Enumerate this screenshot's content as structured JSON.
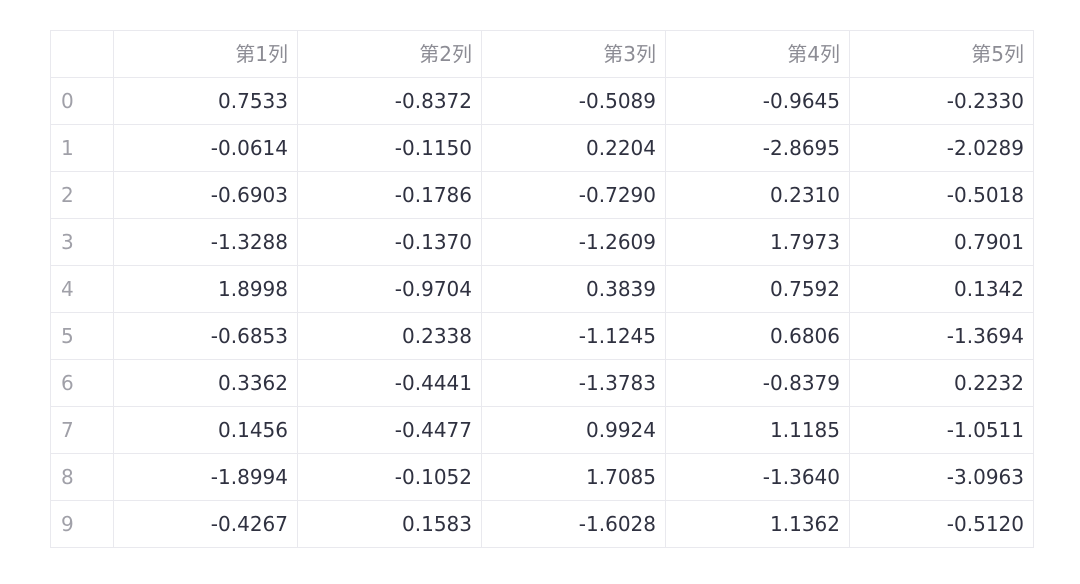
{
  "table": {
    "index_header": "",
    "columns": [
      "第1列",
      "第2列",
      "第3列",
      "第4列",
      "第5列"
    ],
    "rows": [
      {
        "index": "0",
        "cells": [
          "0.7533",
          "-0.8372",
          "-0.5089",
          "-0.9645",
          "-0.2330"
        ]
      },
      {
        "index": "1",
        "cells": [
          "-0.0614",
          "-0.1150",
          "0.2204",
          "-2.8695",
          "-2.0289"
        ]
      },
      {
        "index": "2",
        "cells": [
          "-0.6903",
          "-0.1786",
          "-0.7290",
          "0.2310",
          "-0.5018"
        ]
      },
      {
        "index": "3",
        "cells": [
          "-1.3288",
          "-0.1370",
          "-1.2609",
          "1.7973",
          "0.7901"
        ]
      },
      {
        "index": "4",
        "cells": [
          "1.8998",
          "-0.9704",
          "0.3839",
          "0.7592",
          "0.1342"
        ]
      },
      {
        "index": "5",
        "cells": [
          "-0.6853",
          "0.2338",
          "-1.1245",
          "0.6806",
          "-1.3694"
        ]
      },
      {
        "index": "6",
        "cells": [
          "0.3362",
          "-0.4441",
          "-1.3783",
          "-0.8379",
          "0.2232"
        ]
      },
      {
        "index": "7",
        "cells": [
          "0.1456",
          "-0.4477",
          "0.9924",
          "1.1185",
          "-1.0511"
        ]
      },
      {
        "index": "8",
        "cells": [
          "-1.8994",
          "-0.1052",
          "1.7085",
          "-1.3640",
          "-3.0963"
        ]
      },
      {
        "index": "9",
        "cells": [
          "-0.4267",
          "0.1583",
          "-1.6028",
          "1.1362",
          "-0.5120"
        ]
      }
    ]
  },
  "colors": {
    "header_text": "#8c8c94",
    "index_text": "#a0a0a8",
    "cell_text": "#2f3140",
    "grid_line": "#e9e9ee"
  }
}
